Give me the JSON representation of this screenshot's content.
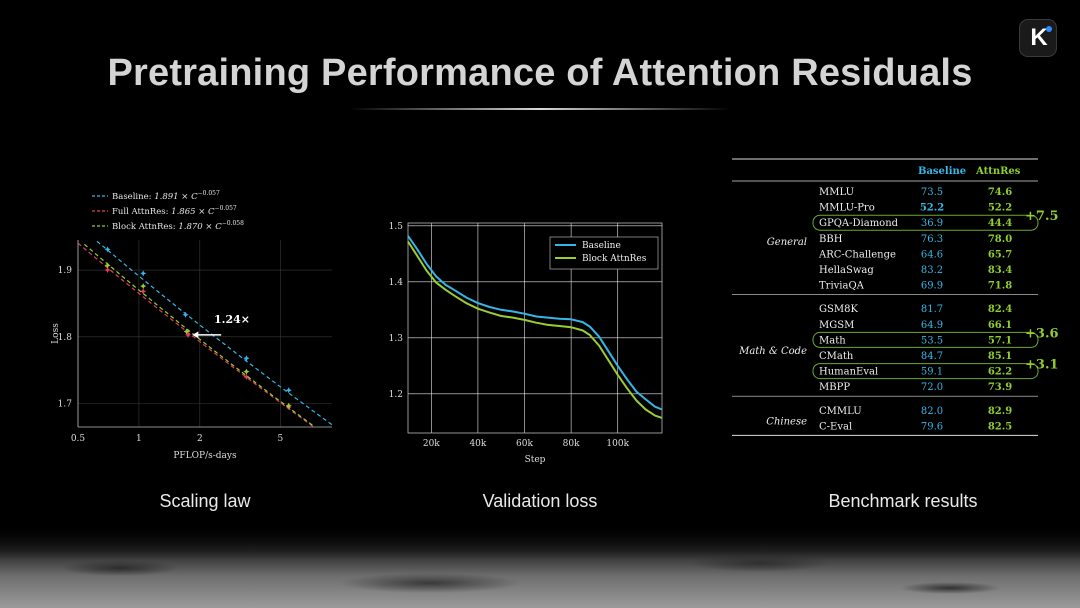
{
  "slide": {
    "title": "Pretraining Performance of Attention Residuals",
    "logo_letter": "K",
    "captions": {
      "scaling": "Scaling law",
      "validation": "Validation loss",
      "benchmark": "Benchmark results"
    }
  },
  "colors": {
    "baseline": "#36b6e6",
    "full_attnres": "#e2405a",
    "block_attnres": "#9acd32",
    "attnres_text": "#8fce2e"
  },
  "chart_data": [
    {
      "type": "scatter",
      "name": "scaling-law",
      "xlabel": "PFLOP/s-days",
      "ylabel": "Loss",
      "x_scale": "log",
      "xlim": [
        0.5,
        9.0
      ],
      "ylim": [
        1.665,
        1.945
      ],
      "xticks": [
        0.5,
        1,
        2,
        5
      ],
      "xtick_labels": [
        "0.5",
        "1",
        "2",
        "5"
      ],
      "yticks": [
        1.7,
        1.8,
        1.9
      ],
      "ytick_labels": [
        "1.7",
        "1.8",
        "1.9"
      ],
      "grid": true,
      "legend_position": "top-left",
      "annotation": "1.24×",
      "series": [
        {
          "legend_prefix": "Baseline: ",
          "legend_formula": "1.891 × C",
          "legend_exponent": "−0.057",
          "key": "baseline",
          "fit": {
            "a": 1.891,
            "b": -0.057
          },
          "points": [
            {
              "x": 0.7,
              "y": 1.931
            },
            {
              "x": 1.05,
              "y": 1.895
            },
            {
              "x": 1.7,
              "y": 1.833
            },
            {
              "x": 3.4,
              "y": 1.768
            },
            {
              "x": 5.5,
              "y": 1.72
            }
          ]
        },
        {
          "legend_prefix": "Full AttnRes: ",
          "legend_formula": "1.865 × C",
          "legend_exponent": "−0.057",
          "key": "full_attnres",
          "fit": {
            "a": 1.865,
            "b": -0.057
          },
          "points": [
            {
              "x": 0.7,
              "y": 1.9
            },
            {
              "x": 1.05,
              "y": 1.868
            },
            {
              "x": 1.75,
              "y": 1.803
            },
            {
              "x": 3.4,
              "y": 1.74
            },
            {
              "x": 5.5,
              "y": 1.695
            }
          ]
        },
        {
          "legend_prefix": "Block AttnRes: ",
          "legend_formula": "1.870 × C",
          "legend_exponent": "−0.058",
          "key": "block_attnres",
          "fit": {
            "a": 1.87,
            "b": -0.058
          },
          "points": [
            {
              "x": 0.7,
              "y": 1.907
            },
            {
              "x": 1.05,
              "y": 1.876
            },
            {
              "x": 1.72,
              "y": 1.808
            },
            {
              "x": 3.4,
              "y": 1.748
            },
            {
              "x": 5.5,
              "y": 1.697
            }
          ]
        }
      ]
    },
    {
      "type": "line",
      "name": "validation-loss",
      "xlabel": "Step",
      "ylabel": "",
      "xlim": [
        10000,
        119000
      ],
      "ylim": [
        1.13,
        1.505
      ],
      "xticks": [
        20000,
        40000,
        60000,
        80000,
        100000
      ],
      "xtick_labels": [
        "20k",
        "40k",
        "60k",
        "80k",
        "100k"
      ],
      "yticks": [
        1.2,
        1.3,
        1.4,
        1.5
      ],
      "ytick_labels": [
        "1.2",
        "1.3",
        "1.4",
        "1.5"
      ],
      "grid": true,
      "legend_position": "top-right",
      "series": [
        {
          "name": "Baseline",
          "key": "baseline",
          "x": [
            10000,
            14000,
            18000,
            22000,
            26000,
            30000,
            35000,
            40000,
            45000,
            50000,
            55000,
            60000,
            65000,
            70000,
            75000,
            80000,
            85000,
            88000,
            92000,
            96000,
            100000,
            104000,
            108000,
            112000,
            116000,
            119000
          ],
          "y": [
            1.482,
            1.458,
            1.432,
            1.41,
            1.395,
            1.385,
            1.372,
            1.362,
            1.355,
            1.35,
            1.347,
            1.343,
            1.338,
            1.336,
            1.334,
            1.333,
            1.328,
            1.32,
            1.302,
            1.276,
            1.25,
            1.226,
            1.204,
            1.19,
            1.177,
            1.172
          ]
        },
        {
          "name": "Block AttnRes",
          "key": "block_attnres",
          "x": [
            10000,
            14000,
            18000,
            22000,
            26000,
            30000,
            35000,
            40000,
            45000,
            50000,
            55000,
            60000,
            65000,
            70000,
            75000,
            80000,
            85000,
            88000,
            92000,
            96000,
            100000,
            104000,
            108000,
            112000,
            116000,
            119000
          ],
          "y": [
            1.472,
            1.446,
            1.42,
            1.399,
            1.386,
            1.375,
            1.362,
            1.352,
            1.345,
            1.339,
            1.336,
            1.332,
            1.327,
            1.323,
            1.321,
            1.319,
            1.313,
            1.305,
            1.286,
            1.26,
            1.234,
            1.21,
            1.188,
            1.172,
            1.161,
            1.157
          ]
        }
      ]
    },
    {
      "type": "table",
      "name": "benchmark-results",
      "columns": [
        "",
        "",
        "Baseline",
        "AttnRes"
      ],
      "groups": [
        {
          "name": "General",
          "rows": [
            {
              "benchmark": "MMLU",
              "baseline": "73.5",
              "attnres": "74.6"
            },
            {
              "benchmark": "MMLU-Pro",
              "baseline": "52.2",
              "attnres": "52.2",
              "baseline_bold": true
            },
            {
              "benchmark": "GPQA-Diamond",
              "baseline": "36.9",
              "attnres": "44.4",
              "highlight": "+7.5"
            },
            {
              "benchmark": "BBH",
              "baseline": "76.3",
              "attnres": "78.0"
            },
            {
              "benchmark": "ARC-Challenge",
              "baseline": "64.6",
              "attnres": "65.7"
            },
            {
              "benchmark": "HellaSwag",
              "baseline": "83.2",
              "attnres": "83.4"
            },
            {
              "benchmark": "TriviaQA",
              "baseline": "69.9",
              "attnres": "71.8"
            }
          ]
        },
        {
          "name": "Math & Code",
          "rows": [
            {
              "benchmark": "GSM8K",
              "baseline": "81.7",
              "attnres": "82.4"
            },
            {
              "benchmark": "MGSM",
              "baseline": "64.9",
              "attnres": "66.1"
            },
            {
              "benchmark": "Math",
              "baseline": "53.5",
              "attnres": "57.1",
              "highlight": "+3.6"
            },
            {
              "benchmark": "CMath",
              "baseline": "84.7",
              "attnres": "85.1"
            },
            {
              "benchmark": "HumanEval",
              "baseline": "59.1",
              "attnres": "62.2",
              "highlight": "+3.1"
            },
            {
              "benchmark": "MBPP",
              "baseline": "72.0",
              "attnres": "73.9"
            }
          ]
        },
        {
          "name": "Chinese",
          "rows": [
            {
              "benchmark": "CMMLU",
              "baseline": "82.0",
              "attnres": "82.9"
            },
            {
              "benchmark": "C-Eval",
              "baseline": "79.6",
              "attnres": "82.5"
            }
          ]
        }
      ]
    }
  ]
}
